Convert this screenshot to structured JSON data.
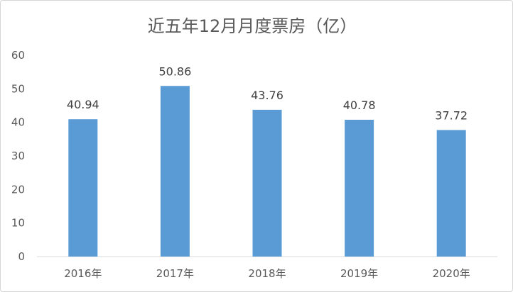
{
  "chart_data": {
    "type": "bar",
    "title": "近五年12月月度票房（亿）",
    "categories": [
      "2016年",
      "2017年",
      "2018年",
      "2019年",
      "2020年"
    ],
    "values": [
      40.94,
      50.86,
      43.76,
      40.78,
      37.72
    ],
    "data_labels": [
      "40.94",
      "50.86",
      "43.76",
      "40.78",
      "37.72"
    ],
    "xlabel": "",
    "ylabel": "",
    "ylim": [
      0,
      60
    ],
    "yticks": [
      0,
      10,
      20,
      30,
      40,
      50,
      60
    ],
    "grid": false,
    "legend": "none",
    "bar_color": "#5b9bd5"
  }
}
